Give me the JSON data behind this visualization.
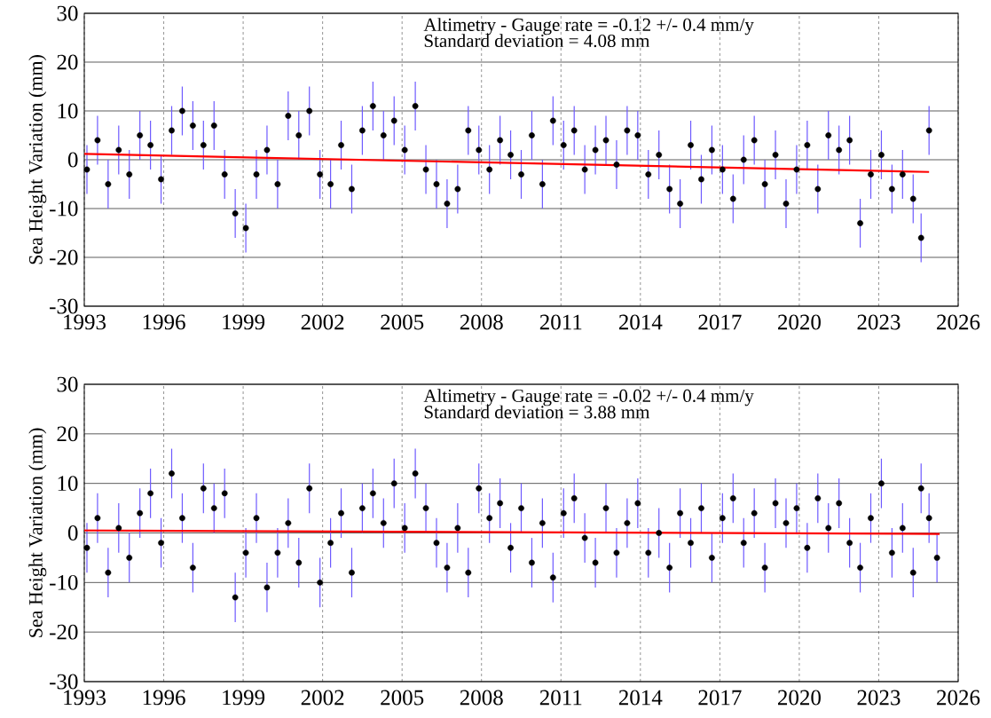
{
  "chart_data": [
    {
      "type": "scatter",
      "ylabel": "Sea Height Variation (mm)",
      "xlim": [
        1993,
        2026
      ],
      "ylim": [
        -30,
        30
      ],
      "xticks": [
        1993,
        1996,
        1999,
        2002,
        2005,
        2008,
        2011,
        2014,
        2017,
        2020,
        2023,
        2026
      ],
      "yticks": [
        -30,
        -20,
        -10,
        0,
        10,
        20,
        30
      ],
      "grid": true,
      "annotations": [
        "Altimetry - Gauge rate = -0.12 +/- 0.4 mm/y",
        "Standard deviation       =  4.08  mm"
      ],
      "series": [
        {
          "type": "scatter",
          "marker": "circle",
          "color": "#000000",
          "x": [
            1993.1,
            1993.5,
            1993.9,
            1994.3,
            1994.7,
            1995.1,
            1995.5,
            1995.9,
            1996.3,
            1996.7,
            1997.1,
            1997.5,
            1997.9,
            1998.3,
            1998.7,
            1999.1,
            1999.5,
            1999.9,
            2000.3,
            2000.7,
            2001.1,
            2001.5,
            2001.9,
            2002.3,
            2002.7,
            2003.1,
            2003.5,
            2003.9,
            2004.3,
            2004.7,
            2005.1,
            2005.5,
            2005.9,
            2006.3,
            2006.7,
            2007.1,
            2007.5,
            2007.9,
            2008.3,
            2008.7,
            2009.1,
            2009.5,
            2009.9,
            2010.3,
            2010.7,
            2011.1,
            2011.5,
            2011.9,
            2012.3,
            2012.7,
            2013.1,
            2013.5,
            2013.9,
            2014.3,
            2014.7,
            2015.1,
            2015.5,
            2015.9,
            2016.3,
            2016.7,
            2017.1,
            2017.5,
            2017.9,
            2018.3,
            2018.7,
            2019.1,
            2019.5,
            2019.9,
            2020.3,
            2020.7,
            2021.1,
            2021.5,
            2021.9,
            2022.3,
            2022.7,
            2023.1,
            2023.5,
            2023.9,
            2024.3,
            2024.6,
            2024.9
          ],
          "values": [
            -2,
            4,
            -5,
            2,
            -3,
            5,
            3,
            -4,
            6,
            10,
            7,
            3,
            7,
            -3,
            -11,
            -14,
            -3,
            2,
            -5,
            9,
            5,
            10,
            -3,
            -5,
            3,
            -6,
            6,
            11,
            5,
            8,
            2,
            11,
            -2,
            -5,
            -9,
            -6,
            6,
            2,
            -2,
            4,
            1,
            -3,
            5,
            -5,
            8,
            3,
            6,
            -2,
            2,
            4,
            -1,
            6,
            5,
            -3,
            1,
            -6,
            -9,
            3,
            -4,
            2,
            -2,
            -8,
            0,
            4,
            -5,
            1,
            -9,
            -2,
            3,
            -6,
            5,
            2,
            4,
            -13,
            -3,
            1,
            -6,
            -3,
            -8,
            -16,
            6
          ],
          "errors": [
            5,
            5,
            5,
            5,
            5,
            5,
            5,
            5,
            5,
            5,
            5,
            5,
            5,
            5,
            5,
            5,
            5,
            5,
            5,
            5,
            5,
            5,
            5,
            5,
            5,
            5,
            5,
            5,
            5,
            5,
            5,
            5,
            5,
            5,
            5,
            5,
            5,
            5,
            5,
            5,
            5,
            5,
            5,
            5,
            5,
            5,
            5,
            5,
            5,
            5,
            5,
            5,
            5,
            5,
            5,
            5,
            5,
            5,
            5,
            5,
            5,
            5,
            5,
            5,
            5,
            5,
            5,
            5,
            5,
            5,
            5,
            5,
            5,
            5,
            5,
            5,
            5,
            5,
            5,
            5,
            5
          ]
        },
        {
          "type": "line",
          "color": "#ff0000",
          "line_style": "solid",
          "marker": "none",
          "x": [
            1993,
            2024.9
          ],
          "values": [
            1.2,
            -2.5
          ]
        }
      ]
    },
    {
      "type": "scatter",
      "ylabel": "Sea Height Variation (mm)",
      "xlim": [
        1993,
        2026
      ],
      "ylim": [
        -30,
        30
      ],
      "xticks": [
        1993,
        1996,
        1999,
        2002,
        2005,
        2008,
        2011,
        2014,
        2017,
        2020,
        2023,
        2026
      ],
      "yticks": [
        -30,
        -20,
        -10,
        0,
        10,
        20,
        30
      ],
      "grid": true,
      "annotations": [
        "Altimetry - Gauge rate = -0.02 +/- 0.4 mm/y",
        "Standard deviation       =  3.88  mm"
      ],
      "series": [
        {
          "type": "scatter",
          "marker": "circle",
          "color": "#000000",
          "x": [
            1993.1,
            1993.5,
            1993.9,
            1994.3,
            1994.7,
            1995.1,
            1995.5,
            1995.9,
            1996.3,
            1996.7,
            1997.1,
            1997.5,
            1997.9,
            1998.3,
            1998.7,
            1999.1,
            1999.5,
            1999.9,
            2000.3,
            2000.7,
            2001.1,
            2001.5,
            2001.9,
            2002.3,
            2002.7,
            2003.1,
            2003.5,
            2003.9,
            2004.3,
            2004.7,
            2005.1,
            2005.5,
            2005.9,
            2006.3,
            2006.7,
            2007.1,
            2007.5,
            2007.9,
            2008.3,
            2008.7,
            2009.1,
            2009.5,
            2009.9,
            2010.3,
            2010.7,
            2011.1,
            2011.5,
            2011.9,
            2012.3,
            2012.7,
            2013.1,
            2013.5,
            2013.9,
            2014.3,
            2014.7,
            2015.1,
            2015.5,
            2015.9,
            2016.3,
            2016.7,
            2017.1,
            2017.5,
            2017.9,
            2018.3,
            2018.7,
            2019.1,
            2019.5,
            2019.9,
            2020.3,
            2020.7,
            2021.1,
            2021.5,
            2021.9,
            2022.3,
            2022.7,
            2023.1,
            2023.5,
            2023.9,
            2024.3,
            2024.6,
            2024.9,
            2025.2
          ],
          "values": [
            -3,
            3,
            -8,
            1,
            -5,
            4,
            8,
            -2,
            12,
            3,
            -7,
            9,
            5,
            8,
            -13,
            -4,
            3,
            -11,
            -4,
            2,
            -6,
            9,
            -10,
            -2,
            4,
            -8,
            5,
            8,
            2,
            10,
            1,
            12,
            5,
            -2,
            -7,
            1,
            -8,
            9,
            3,
            6,
            -3,
            5,
            -6,
            2,
            -9,
            4,
            7,
            -1,
            -6,
            5,
            -4,
            2,
            6,
            -4,
            0,
            -7,
            4,
            -2,
            5,
            -5,
            3,
            7,
            -2,
            4,
            -7,
            6,
            2,
            5,
            -3,
            7,
            1,
            6,
            -2,
            -7,
            3,
            10,
            -4,
            1,
            -8,
            9,
            3,
            -5
          ],
          "errors": [
            5,
            5,
            5,
            5,
            5,
            5,
            5,
            5,
            5,
            5,
            5,
            5,
            5,
            5,
            5,
            5,
            5,
            5,
            5,
            5,
            5,
            5,
            5,
            5,
            5,
            5,
            5,
            5,
            5,
            5,
            5,
            5,
            5,
            5,
            5,
            5,
            5,
            5,
            5,
            5,
            5,
            5,
            5,
            5,
            5,
            5,
            5,
            5,
            5,
            5,
            5,
            5,
            5,
            5,
            5,
            5,
            5,
            5,
            5,
            5,
            5,
            5,
            5,
            5,
            5,
            5,
            5,
            5,
            5,
            5,
            5,
            5,
            5,
            5,
            5,
            5,
            5,
            5,
            5,
            5,
            5,
            5
          ]
        },
        {
          "type": "line",
          "color": "#ff0000",
          "line_style": "solid",
          "marker": "none",
          "x": [
            1993,
            2025.3
          ],
          "values": [
            0.5,
            -0.2
          ]
        }
      ]
    }
  ]
}
